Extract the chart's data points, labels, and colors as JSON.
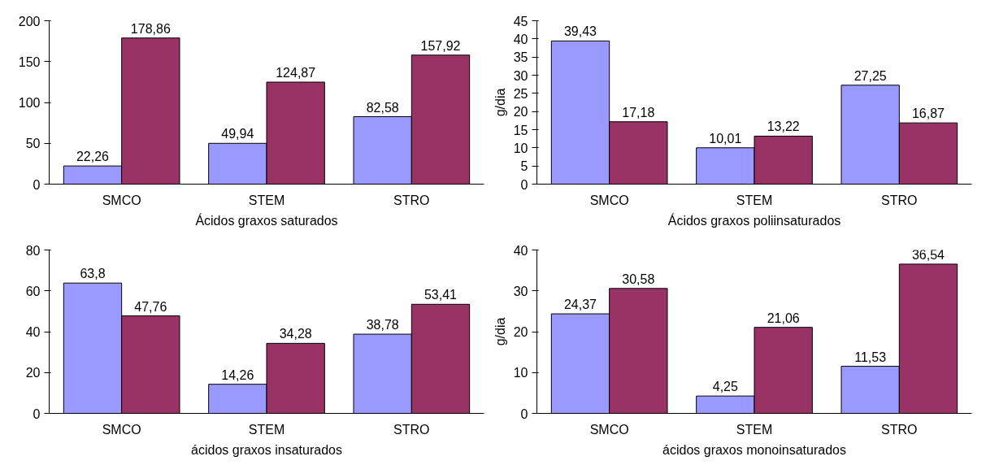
{
  "chart_data": [
    {
      "type": "bar",
      "xlabel": "Ácidos graxos saturados",
      "categories": [
        "SMCO",
        "STEM",
        "STRO"
      ],
      "ylim": [
        0,
        200
      ],
      "yticks": [
        0,
        50,
        100,
        150,
        200
      ],
      "grid": false,
      "series": [
        {
          "color": "#9999ff",
          "values": [
            22.26,
            49.94,
            82.58
          ],
          "value_labels": [
            "22,26",
            "49,94",
            "82,58"
          ]
        },
        {
          "color": "#993366",
          "values": [
            178.86,
            124.87,
            157.92
          ],
          "value_labels": [
            "178,86",
            "124,87",
            "157,92"
          ]
        }
      ]
    },
    {
      "type": "bar",
      "xlabel": "Ácidos graxos poliinsaturados",
      "ylabel": "g/dia",
      "categories": [
        "SMCO",
        "STEM",
        "STRO"
      ],
      "ylim": [
        0,
        45
      ],
      "yticks": [
        0,
        5,
        10,
        15,
        20,
        25,
        30,
        35,
        40,
        45
      ],
      "grid": false,
      "series": [
        {
          "color": "#9999ff",
          "values": [
            39.43,
            10.01,
            27.25
          ],
          "value_labels": [
            "39,43",
            "10,01",
            "27,25"
          ]
        },
        {
          "color": "#993366",
          "values": [
            17.18,
            13.22,
            16.87
          ],
          "value_labels": [
            "17,18",
            "13,22",
            "16,87"
          ]
        }
      ]
    },
    {
      "type": "bar",
      "xlabel": "ácidos graxos insaturados",
      "categories": [
        "SMCO",
        "STEM",
        "STRO"
      ],
      "ylim": [
        0,
        80
      ],
      "yticks": [
        0,
        20,
        40,
        60,
        80
      ],
      "grid": false,
      "series": [
        {
          "color": "#9999ff",
          "values": [
            63.8,
            14.26,
            38.78
          ],
          "value_labels": [
            "63,8",
            "14,26",
            "38,78"
          ]
        },
        {
          "color": "#993366",
          "values": [
            47.76,
            34.28,
            53.41
          ],
          "value_labels": [
            "47,76",
            "34,28",
            "53,41"
          ]
        }
      ]
    },
    {
      "type": "bar",
      "xlabel": "ácidos graxos monoinsaturados",
      "ylabel": "g/dia",
      "categories": [
        "SMCO",
        "STEM",
        "STRO"
      ],
      "ylim": [
        0,
        40
      ],
      "yticks": [
        0,
        10,
        20,
        30,
        40
      ],
      "grid": false,
      "series": [
        {
          "color": "#9999ff",
          "values": [
            24.37,
            4.25,
            11.53
          ],
          "value_labels": [
            "24,37",
            "4,25",
            "11,53"
          ]
        },
        {
          "color": "#993366",
          "values": [
            30.58,
            21.06,
            36.54
          ],
          "value_labels": [
            "30,58",
            "21,06",
            "36,54"
          ]
        }
      ]
    }
  ]
}
